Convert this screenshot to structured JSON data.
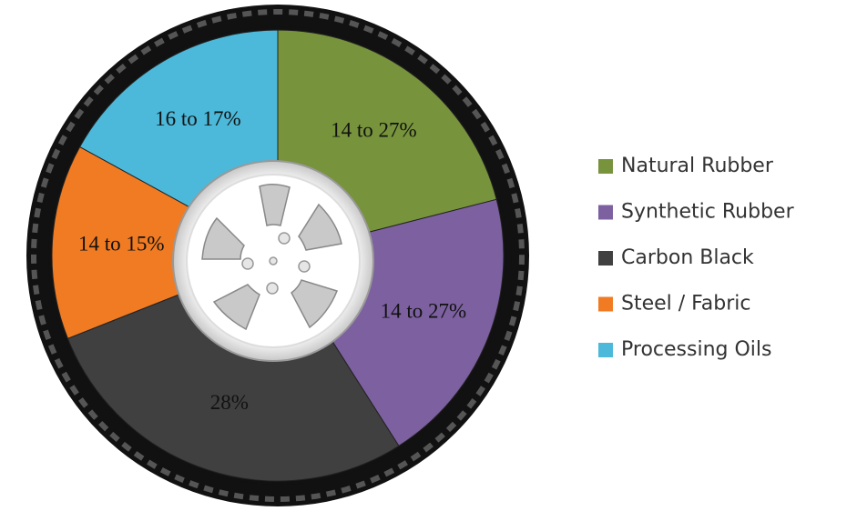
{
  "chart_data": {
    "type": "pie",
    "categories": [
      "Natural Rubber",
      "Synthetic Rubber",
      "Carbon Black",
      "Steel / Fabric",
      "Processing Oils"
    ],
    "values": [
      21,
      20,
      28,
      14,
      17
    ],
    "value_labels": [
      "14 to 27%",
      "14 to 27%",
      "28%",
      "14 to 15%",
      "16 to 17%"
    ],
    "colors": [
      "#77933c",
      "#7d60a0",
      "#404040",
      "#f07b22",
      "#4cb9da"
    ],
    "legend": "right"
  }
}
